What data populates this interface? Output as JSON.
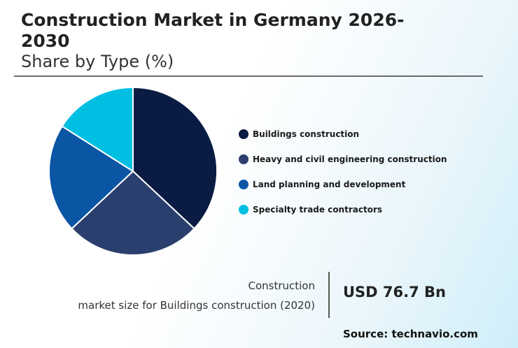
{
  "header": {
    "title": "Construction Market in Germany 2026-2030",
    "subtitle": "Share by Type (%)"
  },
  "chart_data": {
    "type": "pie",
    "categories": [
      "Buildings construction",
      "Heavy and civil engineering construction",
      "Land planning and development",
      "Specialty trade contractors"
    ],
    "values": [
      37,
      26,
      21,
      16
    ],
    "colors": [
      "#0a1c44",
      "#2b3f6e",
      "#0a56a4",
      "#00bfe3"
    ],
    "title": "Share by Type (%)",
    "legend_position": "right"
  },
  "stat": {
    "caption_line1": "Construction",
    "caption_line2": "market size for Buildings construction (2020)",
    "value": "USD 76.7 Bn"
  },
  "source": "Source: technavio.com"
}
